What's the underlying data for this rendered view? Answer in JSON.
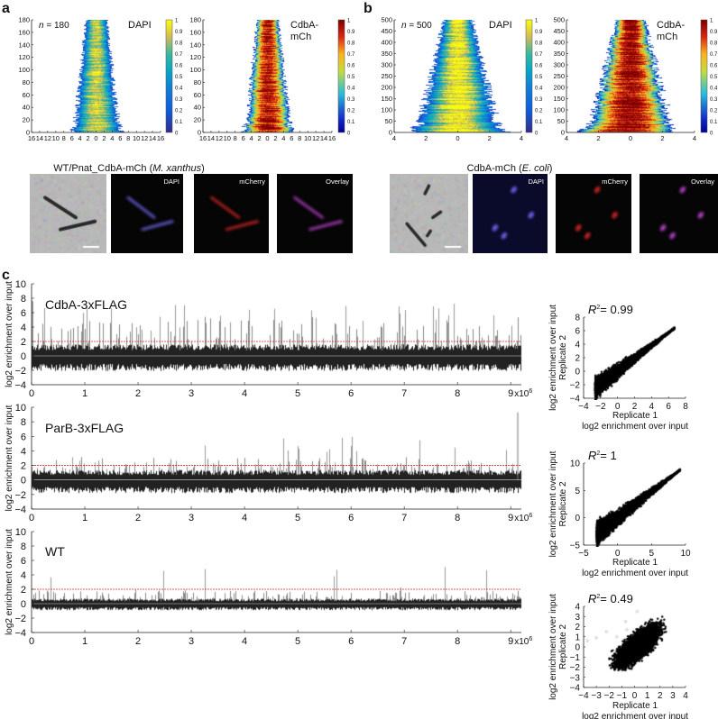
{
  "panel_labels": {
    "a": "a",
    "b": "b",
    "c": "c"
  },
  "colors": {
    "threshold": "#d62728",
    "trace": "#222222",
    "dapi_cmap": "parula",
    "mch_cmap": "jet"
  },
  "chart_data": [
    {
      "id": "a-dapi",
      "type": "heatmap",
      "panel": "a",
      "annotation": "n = 180",
      "n": 180,
      "label": "DAPI",
      "colormap": "parula",
      "xlim": [
        -16,
        16
      ],
      "ylim": [
        0,
        180
      ],
      "xticks": [
        "16",
        "14",
        "12",
        "10",
        "8",
        "6",
        "4",
        "2",
        "0",
        "2",
        "4",
        "6",
        "8",
        "10",
        "12",
        "14",
        "16"
      ],
      "yticks": [
        "0",
        "20",
        "40",
        "60",
        "80",
        "100",
        "120",
        "140",
        "160",
        "180"
      ],
      "colorbar": {
        "range": [
          0,
          1
        ],
        "ticks": [
          "0",
          "0.1",
          "0.2",
          "0.3",
          "0.4",
          "0.5",
          "0.6",
          "0.7",
          "0.8",
          "0.9",
          "1"
        ]
      }
    },
    {
      "id": "a-mch",
      "type": "heatmap",
      "panel": "a",
      "label": "CdbA-\nmCh",
      "colormap": "jet",
      "xlim": [
        -16,
        16
      ],
      "ylim": [
        0,
        180
      ],
      "xticks": [
        "16",
        "14",
        "12",
        "10",
        "8",
        "6",
        "4",
        "2",
        "0",
        "2",
        "4",
        "6",
        "8",
        "10",
        "12",
        "14",
        "16"
      ],
      "yticks": [
        "0",
        "20",
        "40",
        "60",
        "80",
        "100",
        "120",
        "140",
        "160",
        "180"
      ],
      "colorbar": {
        "range": [
          0,
          1
        ],
        "ticks": [
          "0",
          "0.1",
          "0.2",
          "0.3",
          "0.4",
          "0.5",
          "0.6",
          "0.7",
          "0.8",
          "0.9",
          "1"
        ]
      }
    },
    {
      "id": "b-dapi",
      "type": "heatmap",
      "panel": "b",
      "annotation": "n = 500",
      "n": 500,
      "label": "DAPI",
      "colormap": "parula",
      "xlim": [
        -4,
        4
      ],
      "ylim": [
        0,
        500
      ],
      "xticks": [
        "4",
        "2",
        "0",
        "2",
        "4"
      ],
      "yticks": [
        "0",
        "50",
        "100",
        "150",
        "200",
        "250",
        "300",
        "350",
        "400",
        "450",
        "500"
      ],
      "colorbar": {
        "range": [
          0,
          1
        ],
        "ticks": [
          "0",
          "0.1",
          "0.2",
          "0.3",
          "0.4",
          "0.5",
          "0.6",
          "0.7",
          "0.8",
          "0.9",
          "1"
        ]
      }
    },
    {
      "id": "b-mch",
      "type": "heatmap",
      "panel": "b",
      "label": "CdbA-\nmCh",
      "colormap": "jet",
      "xlim": [
        -4,
        4
      ],
      "ylim": [
        0,
        500
      ],
      "xticks": [
        "4",
        "2",
        "0",
        "2",
        "4"
      ],
      "yticks": [
        "0",
        "50",
        "100",
        "150",
        "200",
        "250",
        "300",
        "350",
        "400",
        "450",
        "500"
      ],
      "colorbar": {
        "range": [
          0,
          1
        ],
        "ticks": [
          "0",
          "0.1",
          "0.2",
          "0.3",
          "0.4",
          "0.5",
          "0.6",
          "0.7",
          "0.8",
          "0.9",
          "1"
        ]
      }
    },
    {
      "id": "c-cdba",
      "type": "line",
      "panel": "c",
      "title": "CdbA-3xFLAG",
      "ylabel": "log2 enrichment over input",
      "xlim": [
        0,
        9.2
      ],
      "ylim": [
        -4,
        10
      ],
      "xticks": [
        "0",
        "1",
        "2",
        "3",
        "4",
        "5",
        "6",
        "7",
        "8",
        "9"
      ],
      "x_multiplier": "x10",
      "x_exponent": "6",
      "yticks": [
        "−4",
        "−2",
        "0",
        "2",
        "4",
        "6",
        "8",
        "10"
      ],
      "threshold": 2
    },
    {
      "id": "c-parb",
      "type": "line",
      "panel": "c",
      "title": "ParB-3xFLAG",
      "ylabel": "log2 enrichment over input",
      "xlim": [
        0,
        9.2
      ],
      "ylim": [
        -4,
        10
      ],
      "xticks": [
        "0",
        "1",
        "2",
        "3",
        "4",
        "5",
        "6",
        "7",
        "8",
        "9"
      ],
      "x_multiplier": "x10",
      "x_exponent": "6",
      "yticks": [
        "−4",
        "−2",
        "0",
        "2",
        "4",
        "6",
        "8",
        "10"
      ],
      "threshold": 2
    },
    {
      "id": "c-wt",
      "type": "line",
      "panel": "c",
      "title": "WT",
      "ylabel": "log2 enrichment over input",
      "xlim": [
        0,
        9.2
      ],
      "ylim": [
        -4,
        10
      ],
      "xticks": [
        "0",
        "1",
        "2",
        "3",
        "4",
        "5",
        "6",
        "7",
        "8",
        "9"
      ],
      "x_multiplier": "x10",
      "x_exponent": "6",
      "yticks": [
        "−4",
        "−2",
        "0",
        "2",
        "4",
        "6",
        "8",
        "10"
      ],
      "threshold": 2
    },
    {
      "id": "s-cdba",
      "type": "scatter",
      "panel": "c",
      "r2_label": "R",
      "r2_value": "= 0.99",
      "xlabel": "Replicate 1",
      "xlabel2": "log2 enrichment over input",
      "ylabel": "log2 enrichment over input",
      "ylabel2": "Replicate 2",
      "xlim": [
        -4,
        8
      ],
      "ylim": [
        -4,
        8
      ],
      "xticks": [
        "−4",
        "−2",
        "0",
        "2",
        "4",
        "6",
        "8"
      ],
      "yticks": [
        "−4",
        "−2",
        "0",
        "2",
        "4",
        "6",
        "8"
      ]
    },
    {
      "id": "s-parb",
      "type": "scatter",
      "panel": "c",
      "r2_label": "R",
      "r2_value": "= 1",
      "xlabel": "Replicate 1",
      "xlabel2": "log2 enrichment over input",
      "ylabel": "log2 enrichment over input",
      "ylabel2": "Replicate 2",
      "xlim": [
        -5,
        10
      ],
      "ylim": [
        -5,
        10
      ],
      "xticks": [
        "−5",
        "0",
        "5",
        "10"
      ],
      "yticks": [
        "−5",
        "0",
        "5",
        "10"
      ]
    },
    {
      "id": "s-wt",
      "type": "scatter",
      "panel": "c",
      "r2_label": "R",
      "r2_value": "= 0.49",
      "xlabel": "Replicate 1",
      "xlabel2": "log2 enrichment over input",
      "ylabel": "log2 enrichment over input",
      "ylabel2": "Replicate 2",
      "xlim": [
        -4,
        4
      ],
      "ylim": [
        -4,
        4
      ],
      "xticks": [
        "−4",
        "−3",
        "−2",
        "−1",
        "0",
        "1",
        "2",
        "3",
        "4"
      ],
      "yticks": [
        "−4",
        "−3",
        "−2",
        "−1",
        "0",
        "1",
        "2",
        "3",
        "4"
      ]
    }
  ],
  "micrographs": {
    "left_title_pre": "WT/Pnat_CdbA-mCh (",
    "left_title_it": "M. xanthus",
    "left_title_post": ")",
    "right_title_pre": "CdbA-mCh (",
    "right_title_it": "E. coli",
    "right_title_post": ")",
    "channels": [
      "",
      "DAPI",
      "mCherry",
      "Overlay"
    ]
  }
}
